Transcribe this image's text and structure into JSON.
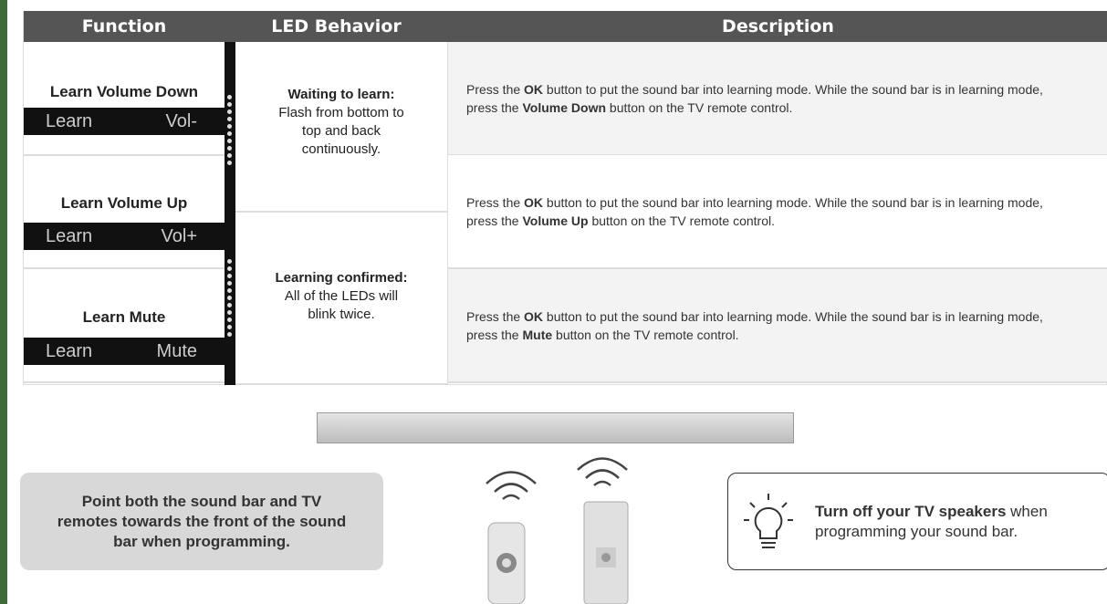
{
  "table": {
    "headers": [
      "Function",
      "LED Behavior",
      "Description"
    ],
    "rows": [
      {
        "function": "Learn Volume Down",
        "display": [
          "Learn",
          "Vol-"
        ],
        "description": [
          {
            "text": "Press the ",
            "bold": false
          },
          {
            "text": "OK",
            "bold": true
          },
          {
            "text": " button to put the sound bar into learning mode. While the sound bar is in learning mode, press the ",
            "bold": false
          },
          {
            "text": "Volume Down",
            "bold": true
          },
          {
            "text": " button on the TV remote control.",
            "bold": false
          }
        ]
      },
      {
        "function": "Learn Volume Up",
        "display": [
          "Learn",
          "Vol+"
        ],
        "description": [
          {
            "text": "Press the ",
            "bold": false
          },
          {
            "text": "OK",
            "bold": true
          },
          {
            "text": " button to put the sound bar into learning mode. While the sound bar is in learning mode, press the ",
            "bold": false
          },
          {
            "text": "Volume Up",
            "bold": true
          },
          {
            "text": " button on the TV remote control.",
            "bold": false
          }
        ]
      },
      {
        "function": "Learn Mute",
        "display": [
          "Learn",
          "Mute"
        ],
        "description": [
          {
            "text": "Press the ",
            "bold": false
          },
          {
            "text": "OK",
            "bold": true
          },
          {
            "text": " button to put the sound bar into learning mode. While the sound bar is in learning mode, press the ",
            "bold": false
          },
          {
            "text": "Mute",
            "bold": true
          },
          {
            "text": " button on the TV remote control.",
            "bold": false
          }
        ]
      }
    ],
    "led_behavior": [
      {
        "title": "Waiting to learn:",
        "text": "Flash from bottom to top and back continuously."
      },
      {
        "title": "Learning confirmed:",
        "text": "All of the LEDs will blink twice."
      }
    ]
  },
  "note": "Point both the sound bar and TV remotes towards the front of the sound bar when programming.",
  "tip": {
    "bold": "Turn off your TV speakers",
    "text": "when programming your sound bar."
  }
}
